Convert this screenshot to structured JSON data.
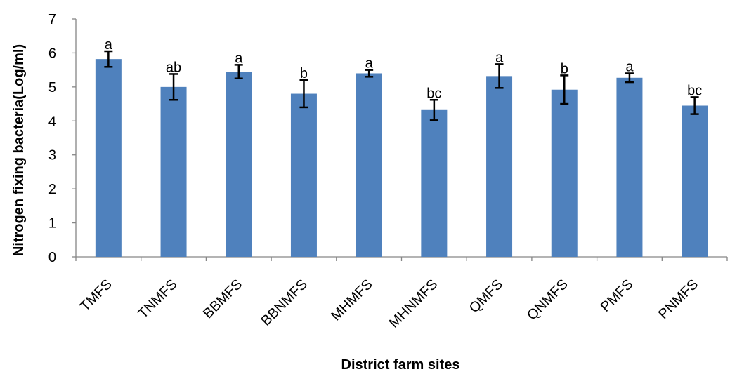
{
  "chart_data": {
    "type": "bar",
    "title": "",
    "xlabel": "District farm sites",
    "ylabel": "Nitrogen fixing bacteria(Log/ml)",
    "ylim": [
      0,
      7
    ],
    "yticks": [
      0,
      1,
      2,
      3,
      4,
      5,
      6,
      7
    ],
    "grid": false,
    "legend": "none",
    "bar_color": "#4F81BD",
    "categories": [
      "TMFS",
      "TNMFS",
      "BBMFS",
      "BBNMFS",
      "MHMFS",
      "MHNMFS",
      "QMFS",
      "QNMFS",
      "PMFS",
      "PNMFS"
    ],
    "values": [
      5.82,
      5.0,
      5.45,
      4.8,
      5.4,
      4.32,
      5.32,
      4.92,
      5.27,
      4.45
    ],
    "errors": [
      0.23,
      0.38,
      0.2,
      0.4,
      0.1,
      0.3,
      0.35,
      0.42,
      0.13,
      0.25
    ],
    "labels": [
      "a",
      "ab",
      "a",
      "b",
      "a",
      "bc",
      "a",
      "b",
      "a",
      "bc"
    ]
  }
}
